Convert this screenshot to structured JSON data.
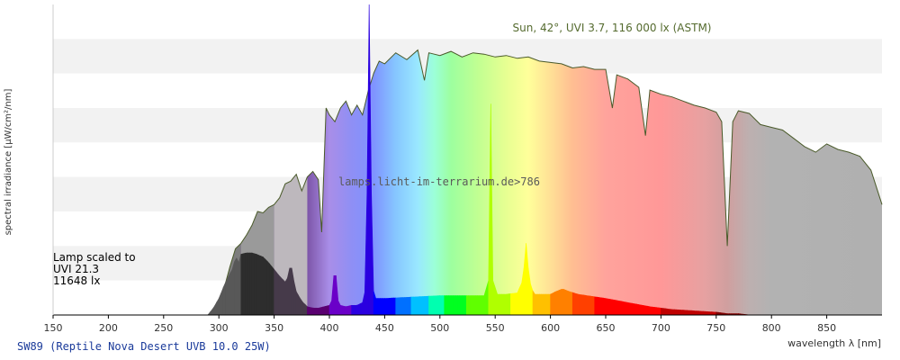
{
  "chart_data": {
    "type": "area",
    "title": "SW89 (Reptile Nova Desert UVB 10.0 25W)",
    "xlabel": "wavelength λ [nm]",
    "ylabel": "spectral irradiance [µW/cm²/nm]",
    "xlim": [
      150,
      900
    ],
    "ylim": [
      0,
      225
    ],
    "x_ticks": [
      "150",
      "200",
      "250",
      "300",
      "350",
      "400",
      "450",
      "500",
      "550",
      "600",
      "650",
      "700",
      "750",
      "800",
      "850"
    ],
    "grid": "horizontal bands",
    "sun_label": "Sun, 42°, UVI 3.7, 116 000 lx (ASTM)",
    "lamp_label_lines": [
      "Lamp scaled to",
      "UVI 21.3",
      "11648 lx"
    ],
    "watermark": "lamps.licht-im-terrarium.de>786",
    "series": [
      {
        "name": "Sun, 42°, UVI 3.7, 116 000 lx (ASTM)",
        "x": [
          290,
          295,
          300,
          305,
          310,
          315,
          320,
          325,
          330,
          335,
          340,
          345,
          350,
          355,
          360,
          365,
          370,
          375,
          380,
          385,
          390,
          393,
          397,
          400,
          405,
          410,
          415,
          420,
          425,
          430,
          435,
          440,
          445,
          450,
          460,
          470,
          480,
          486,
          490,
          500,
          510,
          520,
          530,
          540,
          550,
          560,
          570,
          580,
          590,
          600,
          610,
          620,
          630,
          640,
          650,
          656,
          660,
          670,
          680,
          686,
          690,
          700,
          710,
          720,
          730,
          740,
          750,
          755,
          760,
          765,
          770,
          780,
          790,
          800,
          810,
          820,
          830,
          840,
          850,
          860,
          870,
          880,
          890,
          900
        ],
        "y": [
          0,
          2,
          8,
          20,
          35,
          48,
          52,
          58,
          65,
          75,
          74,
          78,
          80,
          85,
          95,
          97,
          102,
          90,
          100,
          104,
          98,
          60,
          150,
          145,
          140,
          150,
          155,
          145,
          152,
          145,
          162,
          175,
          184,
          182,
          190,
          185,
          192,
          170,
          190,
          188,
          191,
          187,
          190,
          189,
          187,
          188,
          186,
          187,
          184,
          183,
          182,
          179,
          180,
          178,
          178,
          150,
          174,
          171,
          165,
          130,
          163,
          160,
          158,
          155,
          152,
          150,
          147,
          140,
          50,
          140,
          148,
          146,
          138,
          136,
          134,
          128,
          122,
          118,
          124,
          120,
          118,
          115,
          105,
          80
        ]
      },
      {
        "name": "SW89 (Reptile Nova Desert UVB 10.0 25W)",
        "x": [
          290,
          295,
          300,
          305,
          310,
          313,
          315,
          318,
          320,
          325,
          330,
          334,
          337,
          340,
          345,
          350,
          355,
          360,
          363,
          365,
          367,
          370,
          375,
          380,
          385,
          390,
          395,
          400,
          403,
          405,
          407,
          410,
          415,
          420,
          425,
          430,
          433,
          436,
          439,
          442,
          450,
          500,
          540,
          544,
          546,
          548,
          552,
          560,
          570,
          575,
          578,
          581,
          585,
          590,
          600,
          605,
          611,
          617,
          625,
          650,
          670,
          690,
          710,
          730,
          750,
          760,
          770,
          780,
          790,
          800,
          820,
          850,
          900
        ],
        "y": [
          0,
          5,
          12,
          22,
          30,
          34,
          43,
          38,
          44,
          45,
          45,
          44,
          43,
          42,
          38,
          33,
          28,
          24,
          28,
          40,
          28,
          17,
          10,
          6,
          5,
          5,
          6,
          7,
          12,
          45,
          12,
          7,
          6,
          7,
          7,
          9,
          20,
          225,
          20,
          12,
          12,
          14,
          14,
          25,
          153,
          25,
          15,
          15,
          16,
          25,
          52,
          25,
          15,
          15,
          15,
          17,
          19,
          17,
          15,
          12,
          9,
          6,
          4,
          3,
          2,
          1,
          1,
          0,
          0,
          0,
          0,
          0,
          0
        ]
      }
    ]
  }
}
